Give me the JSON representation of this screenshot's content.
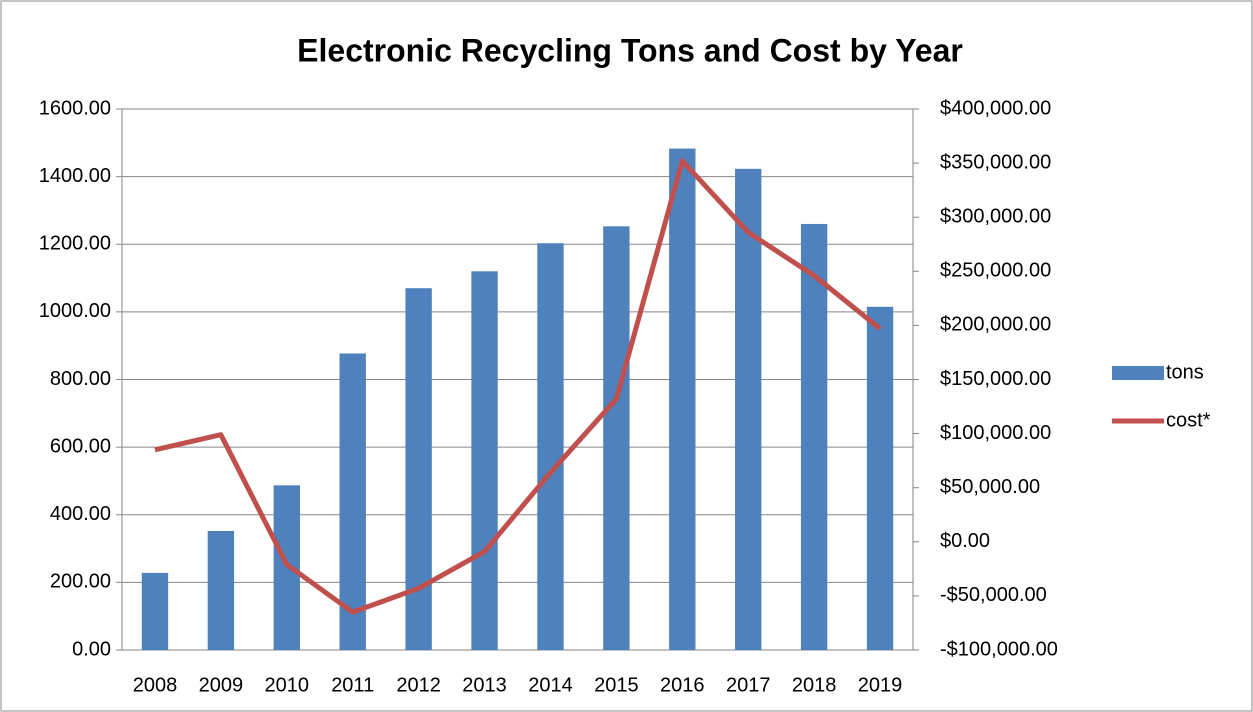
{
  "chart_data": {
    "type": "bar",
    "title": "Electronic Recycling Tons and Cost by Year",
    "categories": [
      "2008",
      "2009",
      "2010",
      "2011",
      "2012",
      "2013",
      "2014",
      "2015",
      "2016",
      "2017",
      "2018",
      "2019"
    ],
    "series": [
      {
        "name": "tons",
        "type": "bar",
        "color": "#4f81bd",
        "values": [
          228,
          352,
          487,
          877,
          1070,
          1120,
          1203,
          1253,
          1483,
          1423,
          1260,
          1015
        ]
      },
      {
        "name": "cost*",
        "type": "line",
        "axis": "y2",
        "color": "#c0504d",
        "values": [
          85000,
          99000,
          -21000,
          -65000,
          -43000,
          -9000,
          64000,
          132000,
          352000,
          286000,
          246000,
          197000
        ]
      }
    ],
    "ylim": [
      0,
      1600
    ],
    "yticks": [
      {
        "value": 0,
        "label": "0.00"
      },
      {
        "value": 200,
        "label": "200.00"
      },
      {
        "value": 400,
        "label": "400.00"
      },
      {
        "value": 600,
        "label": "600.00"
      },
      {
        "value": 800,
        "label": "800.00"
      },
      {
        "value": 1000,
        "label": "1000.00"
      },
      {
        "value": 1200,
        "label": "1200.00"
      },
      {
        "value": 1400,
        "label": "1400.00"
      },
      {
        "value": 1600,
        "label": "1600.00"
      }
    ],
    "y2lim": [
      -100000,
      400000
    ],
    "y2ticks": [
      {
        "value": -100000,
        "label": "-$100,000.00"
      },
      {
        "value": -50000,
        "label": "-$50,000.00"
      },
      {
        "value": 0,
        "label": "$0.00"
      },
      {
        "value": 50000,
        "label": "$50,000.00"
      },
      {
        "value": 100000,
        "label": "$100,000.00"
      },
      {
        "value": 150000,
        "label": "$150,000.00"
      },
      {
        "value": 200000,
        "label": "$200,000.00"
      },
      {
        "value": 250000,
        "label": "$250,000.00"
      },
      {
        "value": 300000,
        "label": "$300,000.00"
      },
      {
        "value": 350000,
        "label": "$350,000.00"
      },
      {
        "value": 400000,
        "label": "$400,000.00"
      }
    ],
    "grid": true,
    "legend": "right"
  }
}
